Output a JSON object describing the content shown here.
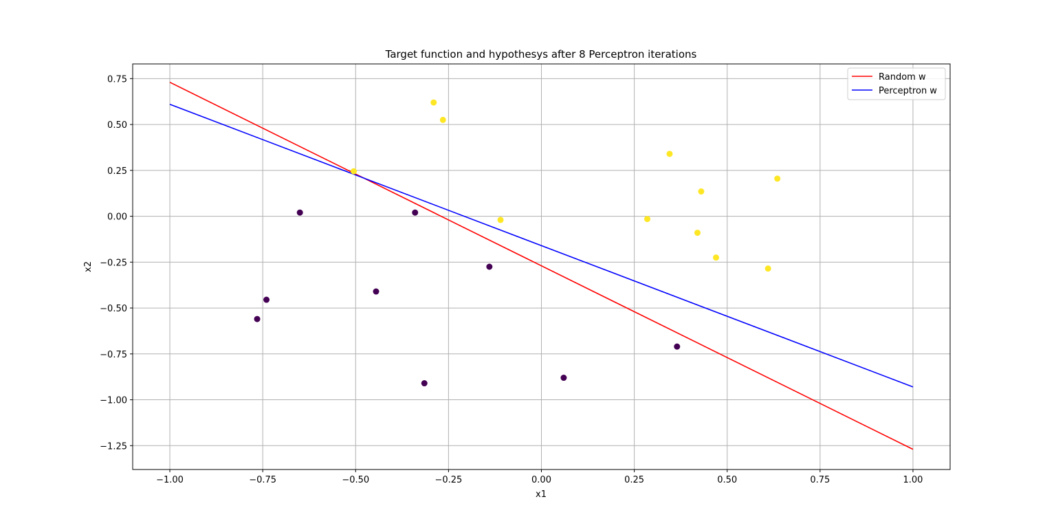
{
  "chart_data": {
    "type": "scatter",
    "title": "Target function and hypothesys after 8 Perceptron iterations",
    "xlabel": "x1",
    "ylabel": "x2",
    "xlim": [
      -1.1,
      1.1
    ],
    "ylim": [
      -1.38,
      0.83
    ],
    "grid": true,
    "legend_placement": "top-right",
    "x_ticks": [
      -1.0,
      -0.75,
      -0.5,
      -0.25,
      0.0,
      0.25,
      0.5,
      0.75,
      1.0
    ],
    "x_tick_labels": [
      "−1.00",
      "−0.75",
      "−0.50",
      "−0.25",
      "0.00",
      "0.25",
      "0.50",
      "0.75",
      "1.00"
    ],
    "y_ticks": [
      0.75,
      0.5,
      0.25,
      0.0,
      -0.25,
      -0.5,
      -0.75,
      -1.0,
      -1.25
    ],
    "y_tick_labels": [
      "0.75",
      "0.50",
      "0.25",
      "0.00",
      "−0.25",
      "−0.50",
      "−0.75",
      "−1.00",
      "−1.25"
    ],
    "series": [
      {
        "name": "Random w",
        "kind": "line",
        "color": "#ff0000",
        "x": [
          -1.0,
          1.0
        ],
        "y": [
          0.73,
          -1.27
        ]
      },
      {
        "name": "Perceptron w",
        "kind": "line",
        "color": "#0000ff",
        "x": [
          -1.0,
          1.0
        ],
        "y": [
          0.61,
          -0.93
        ]
      }
    ],
    "points": {
      "class_colors": {
        "positive": "#fde725",
        "negative": "#440154"
      },
      "positive": [
        {
          "x": -0.29,
          "y": 0.62
        },
        {
          "x": -0.265,
          "y": 0.525
        },
        {
          "x": -0.505,
          "y": 0.245
        },
        {
          "x": -0.11,
          "y": -0.02
        },
        {
          "x": 0.285,
          "y": -0.015
        },
        {
          "x": 0.345,
          "y": 0.34
        },
        {
          "x": 0.43,
          "y": 0.135
        },
        {
          "x": 0.42,
          "y": -0.09
        },
        {
          "x": 0.47,
          "y": -0.225
        },
        {
          "x": 0.61,
          "y": -0.285
        },
        {
          "x": 0.635,
          "y": 0.205
        }
      ],
      "negative": [
        {
          "x": -0.65,
          "y": 0.02
        },
        {
          "x": -0.34,
          "y": 0.02
        },
        {
          "x": -0.74,
          "y": -0.455
        },
        {
          "x": -0.765,
          "y": -0.56
        },
        {
          "x": -0.445,
          "y": -0.41
        },
        {
          "x": -0.14,
          "y": -0.275
        },
        {
          "x": -0.315,
          "y": -0.91
        },
        {
          "x": 0.06,
          "y": -0.88
        },
        {
          "x": 0.365,
          "y": -0.71
        }
      ]
    }
  }
}
